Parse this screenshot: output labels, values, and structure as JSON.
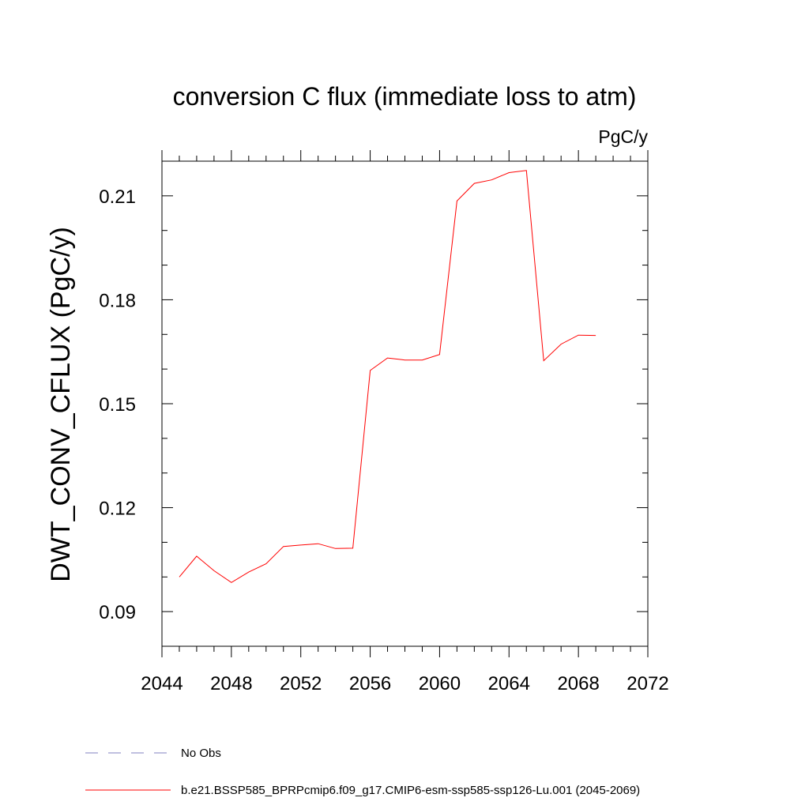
{
  "chart_data": {
    "type": "line",
    "title": "conversion C flux (immediate loss to atm)",
    "units": "PgC/y",
    "ylabel": "DWT_CONV_CFLUX  (PgC/y)",
    "xlabel": "",
    "xlim": [
      2044,
      2072
    ],
    "ylim": [
      0.08,
      0.22
    ],
    "x_ticks": [
      "2044",
      "2048",
      "2052",
      "2056",
      "2060",
      "2064",
      "2068",
      "2072"
    ],
    "x_tick_values": [
      2044,
      2048,
      2052,
      2056,
      2060,
      2064,
      2068,
      2072
    ],
    "y_ticks": [
      "0.09",
      "0.12",
      "0.15",
      "0.18",
      "0.21"
    ],
    "y_tick_values": [
      0.09,
      0.12,
      0.15,
      0.18,
      0.21
    ],
    "grid": false,
    "legend_position": "bottom-left",
    "series": [
      {
        "name": "b.e21.BSSP585_BPRPcmip6.f09_g17.CMIP6-esm-ssp585-ssp126-Lu.001 (2045-2069)",
        "color": "#ff0000",
        "x": [
          2045,
          2046,
          2047,
          2048,
          2049,
          2050,
          2051,
          2052,
          2053,
          2054,
          2055,
          2056,
          2057,
          2058,
          2059,
          2060,
          2061,
          2062,
          2063,
          2064,
          2065,
          2066,
          2067,
          2068,
          2069
        ],
        "y": [
          0.1,
          0.106,
          0.1018,
          0.0984,
          0.1014,
          0.1038,
          0.1088,
          0.1092,
          0.1096,
          0.1082,
          0.1083,
          0.1596,
          0.1632,
          0.1626,
          0.1626,
          0.1642,
          0.2085,
          0.2136,
          0.2146,
          0.2167,
          0.2173,
          0.1624,
          0.1672,
          0.1698,
          0.1697
        ]
      }
    ],
    "legend": [
      {
        "label": "No Obs",
        "color": "#8080c0",
        "style": "dashed"
      },
      {
        "label": "b.e21.BSSP585_BPRPcmip6.f09_g17.CMIP6-esm-ssp585-ssp126-Lu.001 (2045-2069)",
        "color": "#ff0000",
        "style": "solid"
      }
    ]
  }
}
